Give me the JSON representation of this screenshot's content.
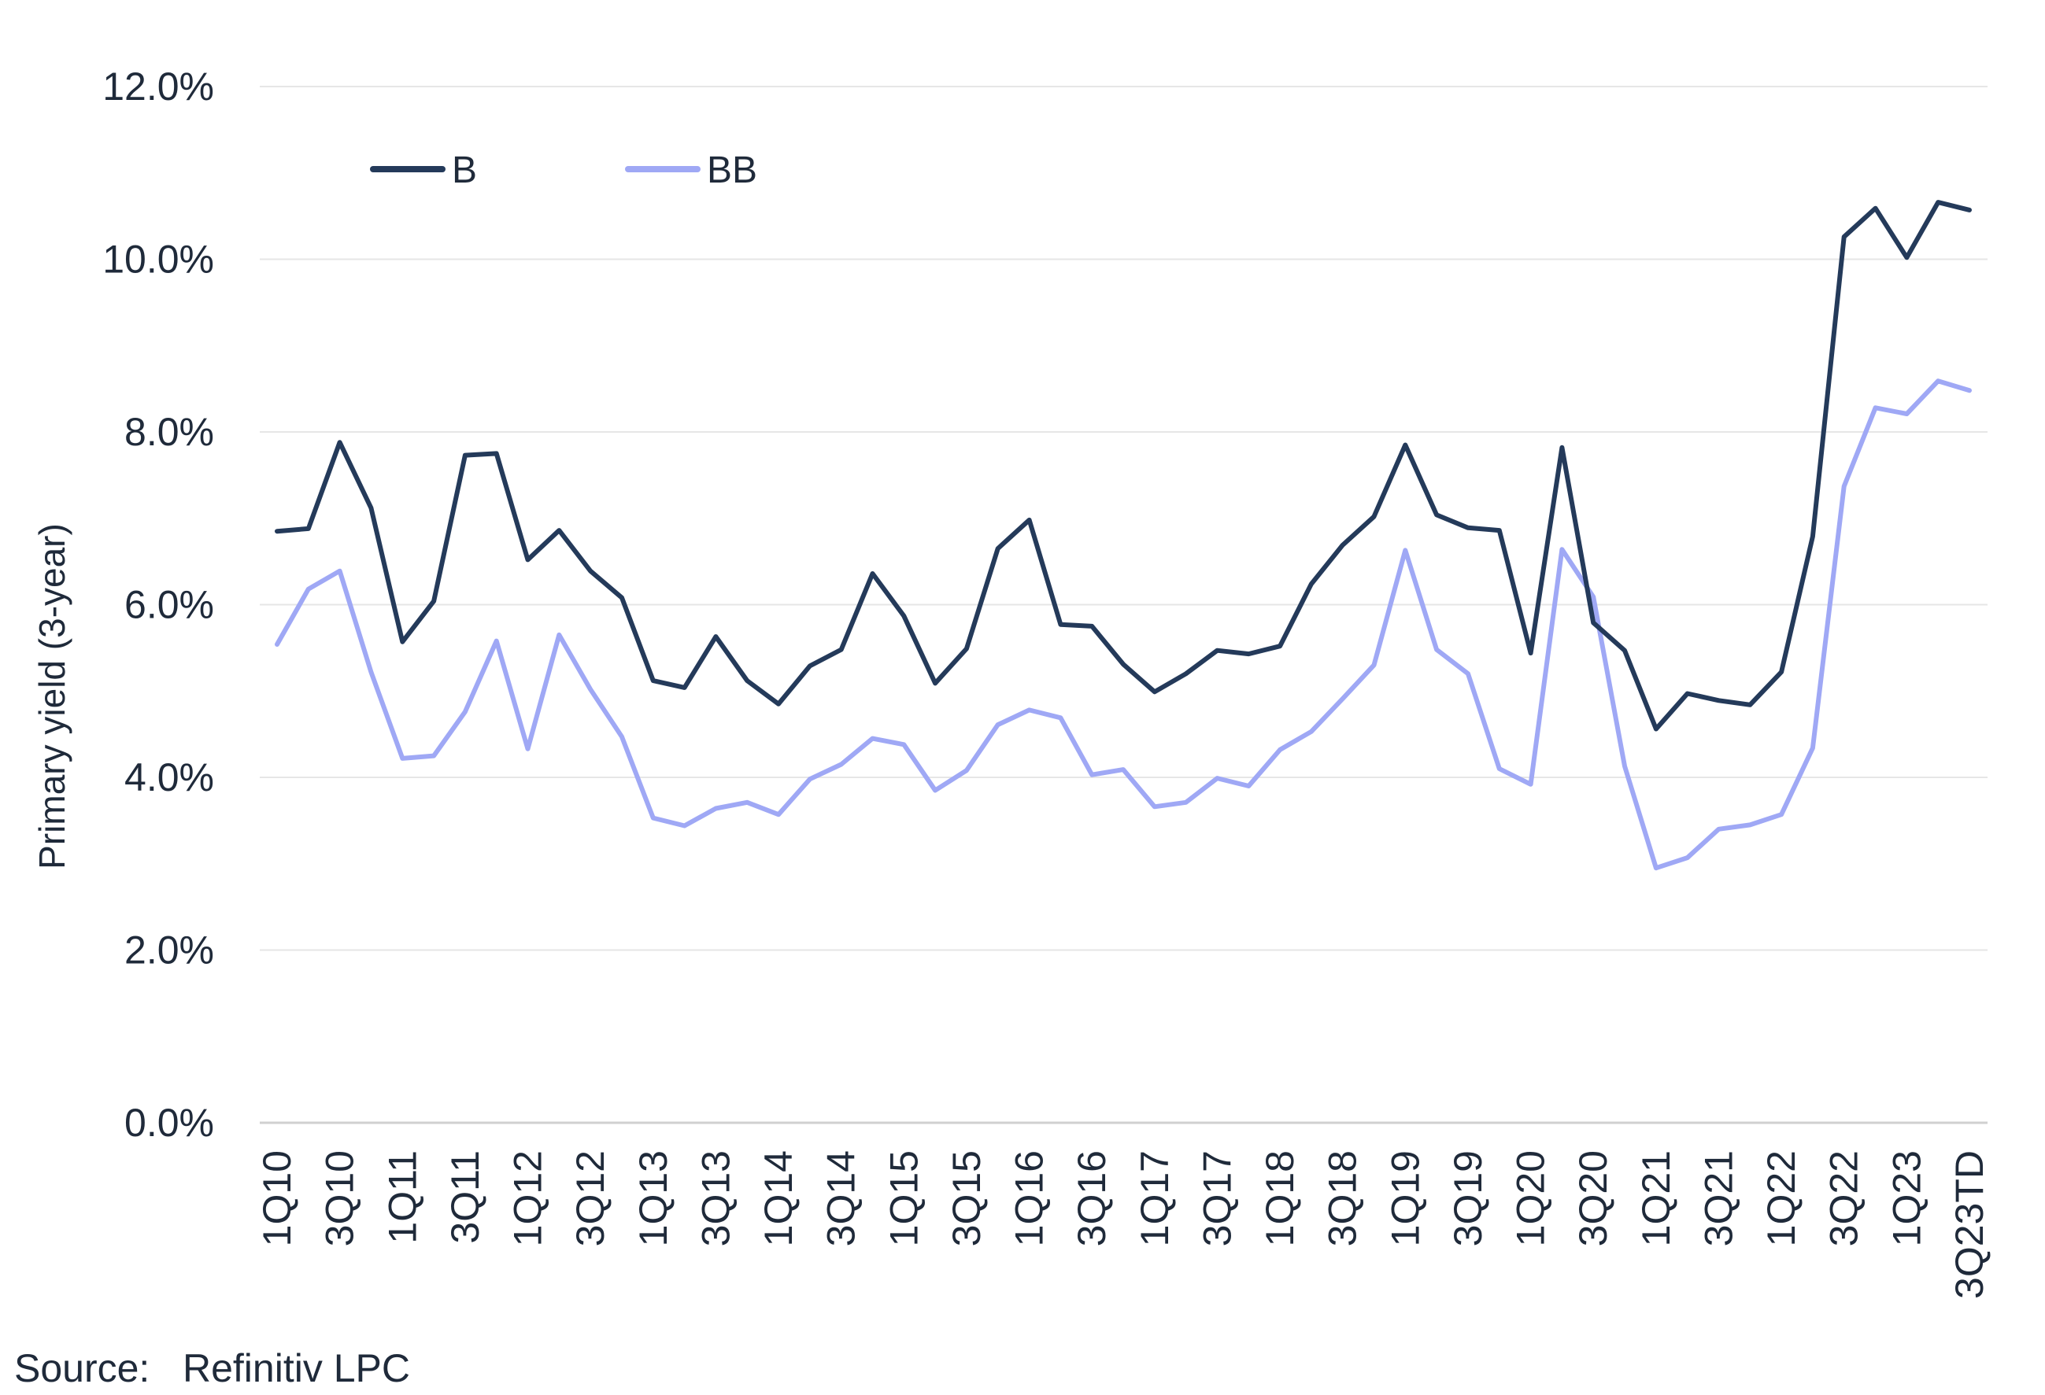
{
  "chart_data": {
    "type": "line",
    "title": "",
    "xlabel": "",
    "ylabel": "Primary yield (3-year)",
    "ylim": [
      0,
      12
    ],
    "y_ticks": [
      "0.0%",
      "2.0%",
      "4.0%",
      "6.0%",
      "8.0%",
      "10.0%",
      "12.0%"
    ],
    "y_tick_values": [
      0,
      2,
      4,
      6,
      8,
      10,
      12
    ],
    "grid": true,
    "legend_position": "top-left",
    "categories": [
      "1Q10",
      "2Q10",
      "3Q10",
      "4Q10",
      "1Q11",
      "2Q11",
      "3Q11",
      "4Q11",
      "1Q12",
      "2Q12",
      "3Q12",
      "4Q12",
      "1Q13",
      "2Q13",
      "3Q13",
      "4Q13",
      "1Q14",
      "2Q14",
      "3Q14",
      "4Q14",
      "1Q15",
      "2Q15",
      "3Q15",
      "4Q15",
      "1Q16",
      "2Q16",
      "3Q16",
      "4Q16",
      "1Q17",
      "2Q17",
      "3Q17",
      "4Q17",
      "1Q18",
      "2Q18",
      "3Q18",
      "4Q18",
      "1Q19",
      "2Q19",
      "3Q19",
      "4Q19",
      "1Q20",
      "2Q20",
      "3Q20",
      "4Q20",
      "1Q21",
      "2Q21",
      "3Q21",
      "4Q21",
      "1Q22",
      "2Q22",
      "3Q22",
      "4Q22",
      "1Q23",
      "2Q23",
      "3Q23TD"
    ],
    "x_tick_labels": [
      "1Q10",
      "3Q10",
      "1Q11",
      "3Q11",
      "1Q12",
      "3Q12",
      "1Q13",
      "3Q13",
      "1Q14",
      "3Q14",
      "1Q15",
      "3Q15",
      "1Q16",
      "3Q16",
      "1Q17",
      "3Q17",
      "1Q18",
      "3Q18",
      "1Q19",
      "3Q19",
      "1Q20",
      "3Q20",
      "1Q21",
      "3Q21",
      "1Q22",
      "3Q22",
      "1Q23",
      "3Q23TD"
    ],
    "series": [
      {
        "name": "B",
        "color": "#243a5a",
        "values": [
          6.85,
          6.88,
          7.88,
          7.12,
          5.57,
          6.04,
          7.73,
          7.75,
          6.52,
          6.86,
          6.39,
          6.08,
          5.12,
          5.04,
          5.63,
          5.12,
          4.85,
          5.29,
          5.48,
          6.36,
          5.87,
          5.09,
          5.49,
          6.65,
          6.98,
          5.77,
          5.75,
          5.31,
          4.99,
          5.2,
          5.47,
          5.43,
          5.52,
          6.24,
          6.69,
          7.02,
          7.85,
          7.04,
          6.89,
          6.86,
          5.44,
          7.82,
          5.79,
          5.47,
          4.56,
          4.97,
          4.89,
          4.84,
          5.22,
          6.79,
          10.26,
          10.59,
          10.02,
          10.66,
          10.57
        ]
      },
      {
        "name": "BB",
        "color": "#9fa8f5",
        "values": [
          5.54,
          6.18,
          6.39,
          5.22,
          4.22,
          4.25,
          4.76,
          5.58,
          4.33,
          5.65,
          5.02,
          4.47,
          3.53,
          3.44,
          3.64,
          3.71,
          3.57,
          3.98,
          4.15,
          4.45,
          4.38,
          3.85,
          4.08,
          4.61,
          4.78,
          4.69,
          4.03,
          4.09,
          3.66,
          3.71,
          3.99,
          3.9,
          4.32,
          4.53,
          4.91,
          5.3,
          6.63,
          5.48,
          5.2,
          4.1,
          3.92,
          6.64,
          6.09,
          4.13,
          2.95,
          3.07,
          3.4,
          3.45,
          3.57,
          4.34,
          7.37,
          8.28,
          8.21,
          8.59,
          8.48
        ]
      }
    ]
  },
  "source": {
    "label": "Source:",
    "text": "Refinitiv LPC"
  }
}
